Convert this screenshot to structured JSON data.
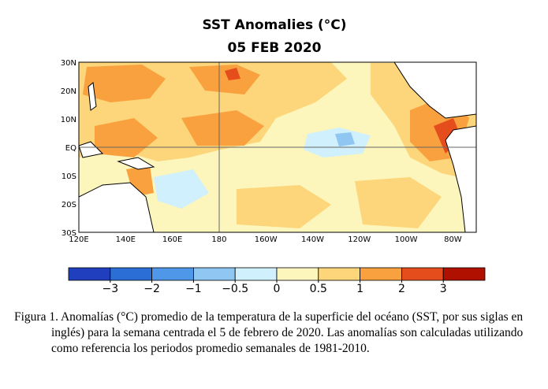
{
  "map": {
    "title": "SST Anomalies (°C)",
    "date": "05 FEB 2020",
    "lat_labels": [
      "30N",
      "20N",
      "10N",
      "EQ",
      "10S",
      "20S",
      "30S"
    ],
    "lon_labels": [
      "120E",
      "140E",
      "160E",
      "180",
      "160W",
      "140W",
      "120W",
      "100W",
      "80W"
    ],
    "colorbar": {
      "colors": [
        "#1f3fbf",
        "#2b6fd6",
        "#4f97e8",
        "#90c6f2",
        "#cff0fc",
        "#fdf6bc",
        "#fdd57a",
        "#f8a13e",
        "#e64d1c",
        "#b01000"
      ],
      "ticks": [
        {
          "value": -3,
          "label": "−3"
        },
        {
          "value": -2,
          "label": "−2"
        },
        {
          "value": -1,
          "label": "−1"
        },
        {
          "value": -0.5,
          "label": "−0.5"
        },
        0,
        0.5,
        1,
        2,
        3
      ]
    }
  },
  "caption": {
    "text": "Figura 1. Anomalías (°C) promedio de la temperatura de la superficie del océano (SST, por sus siglas en inglés) para la semana centrada el 5 de febrero de 2020. Las anomalías son calculadas utilizando como referencia los periodos promedio semanales de 1981-2010."
  }
}
